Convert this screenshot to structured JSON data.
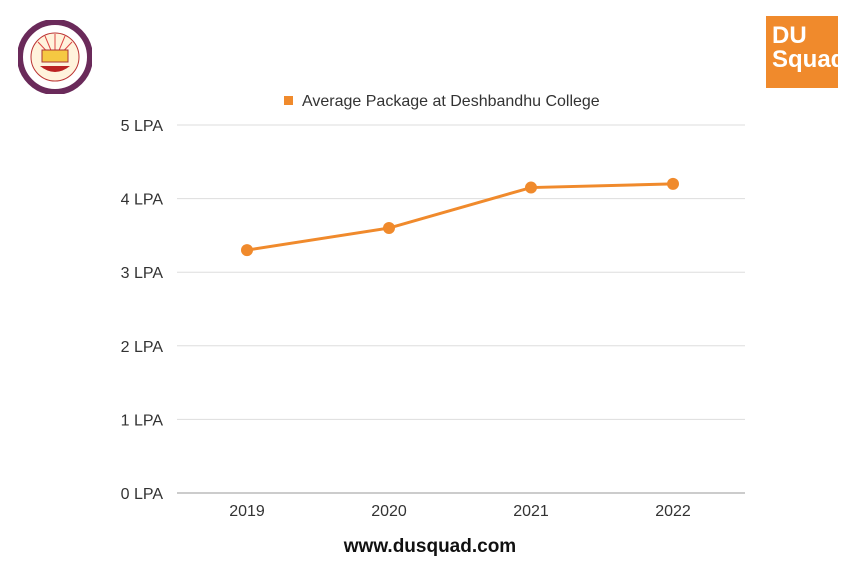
{
  "branding": {
    "left_logo": "University of Delhi seal",
    "right_logo_line1": "DU",
    "right_logo_line2": "Squad",
    "accent_color": "#f08a2c"
  },
  "footer": {
    "website": "www.dusquad.com"
  },
  "chart_data": {
    "type": "line",
    "categories": [
      "2019",
      "2020",
      "2021",
      "2022"
    ],
    "series": [
      {
        "name": "Average Package at Deshbandhu College",
        "values": [
          3.3,
          3.6,
          4.15,
          4.2
        ],
        "color": "#f08a2c"
      }
    ],
    "ylim": [
      0,
      5
    ],
    "yticks": [
      0,
      1,
      2,
      3,
      4,
      5
    ],
    "ytick_labels": [
      "0 LPA",
      "1 LPA",
      "2 LPA",
      "3 LPA",
      "4 LPA",
      "5 LPA"
    ],
    "grid": true,
    "legend_position": "top-center",
    "title": "",
    "xlabel": "",
    "ylabel": ""
  }
}
